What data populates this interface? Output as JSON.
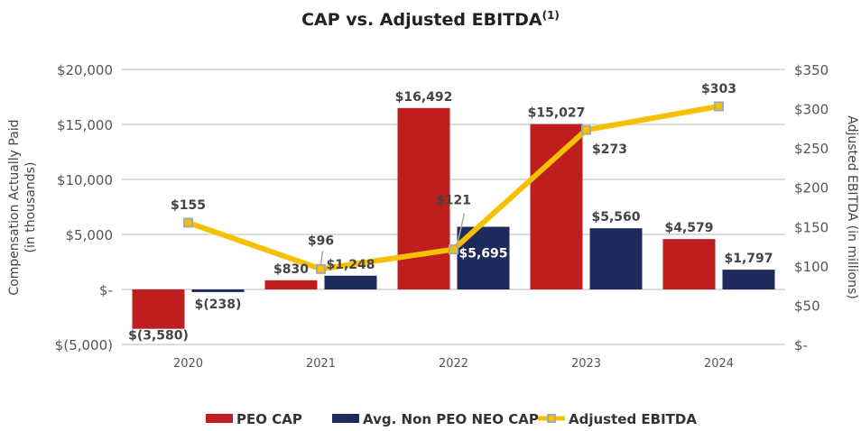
{
  "chart_data": {
    "type": "bar",
    "title": "CAP vs. Adjusted EBITDA",
    "title_superscript": "(1)",
    "categories": [
      "2020",
      "2021",
      "2022",
      "2023",
      "2024"
    ],
    "ylabel": "Compensation Actually Paid",
    "ylabel2": "(in thousands)",
    "y2label": "Adjusted EBITDA (in millions)",
    "ylim": [
      -5000,
      20000
    ],
    "y2lim": [
      0,
      350
    ],
    "yticks": [
      -5000,
      0,
      5000,
      10000,
      15000,
      20000
    ],
    "ytick_labels": [
      "$(5,000)",
      "$-",
      "$5,000",
      "$10,000",
      "$15,000",
      "$20,000"
    ],
    "y2ticks": [
      0,
      50,
      100,
      150,
      200,
      250,
      300,
      350
    ],
    "y2tick_labels": [
      "$-",
      "$50",
      "$100",
      "$150",
      "$200",
      "$250",
      "$300",
      "$350"
    ],
    "grid": true,
    "legend_position": "bottom",
    "series": [
      {
        "name": "PEO CAP",
        "type": "bar",
        "axis": "left",
        "color": "#BE1E1E",
        "values": [
          -3580,
          830,
          16492,
          15027,
          4579
        ],
        "labels": [
          "$(3,580)",
          "$830",
          "$16,492",
          "$15,027",
          "$4,579"
        ]
      },
      {
        "name": "Avg. Non PEO NEO CAP",
        "type": "bar",
        "axis": "left",
        "color": "#1F2A5C",
        "values": [
          -238,
          1248,
          5695,
          5560,
          1797
        ],
        "labels": [
          "$(238)",
          "$1,248",
          "$5,695",
          "$5,560",
          "$1,797"
        ]
      },
      {
        "name": "Adjusted EBITDA",
        "type": "line",
        "axis": "right",
        "color": "#F5C000",
        "marker_color": "#A9A9A9",
        "values": [
          155,
          96,
          121,
          273,
          303
        ],
        "labels": [
          "$155",
          "$96",
          "$121",
          "$273",
          "$303"
        ]
      }
    ]
  }
}
